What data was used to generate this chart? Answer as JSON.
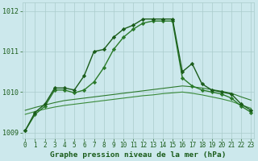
{
  "background_color": "#cce8ec",
  "grid_color": "#aacccc",
  "line1_main": {
    "x": [
      0,
      1,
      2,
      3,
      4,
      5,
      6,
      7,
      8,
      9,
      10,
      11,
      12,
      13,
      14,
      15,
      16,
      17,
      18,
      19,
      20,
      21,
      22,
      23
    ],
    "y": [
      1009.05,
      1009.5,
      1009.7,
      1010.1,
      1010.1,
      1010.05,
      1010.4,
      1011.0,
      1011.05,
      1011.35,
      1011.55,
      1011.65,
      1011.8,
      1011.8,
      1011.8,
      1011.8,
      1010.5,
      1010.7,
      1010.2,
      1010.05,
      1010.0,
      1009.95,
      1009.7,
      1009.55
    ],
    "color": "#1a5c1a",
    "linewidth": 1.0,
    "marker": "D",
    "markersize": 2.2,
    "linestyle": "-"
  },
  "line2_second": {
    "x": [
      0,
      1,
      2,
      3,
      4,
      5,
      6,
      7,
      8,
      9,
      10,
      11,
      12,
      13,
      14,
      15,
      16,
      17,
      18,
      19,
      20,
      21,
      22,
      23
    ],
    "y": [
      1009.05,
      1009.45,
      1009.65,
      1010.05,
      1010.05,
      1009.98,
      1010.05,
      1010.25,
      1010.6,
      1011.05,
      1011.35,
      1011.55,
      1011.7,
      1011.75,
      1011.75,
      1011.75,
      1010.35,
      1010.15,
      1010.05,
      1010.0,
      1009.95,
      1009.85,
      1009.65,
      1009.5
    ],
    "color": "#2a7a2a",
    "linewidth": 1.0,
    "marker": "D",
    "markersize": 2.2,
    "linestyle": "-"
  },
  "line3_upper_flat": {
    "x": [
      0,
      1,
      2,
      3,
      4,
      5,
      6,
      7,
      8,
      9,
      10,
      11,
      12,
      13,
      14,
      15,
      16,
      17,
      18,
      19,
      20,
      21,
      22,
      23
    ],
    "y": [
      1009.55,
      1009.62,
      1009.68,
      1009.74,
      1009.79,
      1009.82,
      1009.85,
      1009.88,
      1009.91,
      1009.94,
      1009.97,
      1010.0,
      1010.03,
      1010.06,
      1010.09,
      1010.12,
      1010.15,
      1010.13,
      1010.1,
      1010.06,
      1010.02,
      1009.97,
      1009.88,
      1009.8
    ],
    "color": "#2d7a2d",
    "linewidth": 0.8,
    "marker": null,
    "linestyle": "-"
  },
  "line4_lower_flat": {
    "x": [
      0,
      1,
      2,
      3,
      4,
      5,
      6,
      7,
      8,
      9,
      10,
      11,
      12,
      13,
      14,
      15,
      16,
      17,
      18,
      19,
      20,
      21,
      22,
      23
    ],
    "y": [
      1009.45,
      1009.52,
      1009.58,
      1009.63,
      1009.67,
      1009.7,
      1009.73,
      1009.76,
      1009.79,
      1009.82,
      1009.85,
      1009.88,
      1009.91,
      1009.93,
      1009.96,
      1009.98,
      1010.0,
      1009.97,
      1009.93,
      1009.88,
      1009.83,
      1009.77,
      1009.68,
      1009.6
    ],
    "color": "#3a8a3a",
    "linewidth": 0.8,
    "marker": null,
    "linestyle": "-"
  },
  "ylim": [
    1008.85,
    1012.2
  ],
  "xlim": [
    -0.3,
    23.3
  ],
  "yticks": [
    1009,
    1010,
    1011,
    1012
  ],
  "xticks": [
    0,
    1,
    2,
    3,
    4,
    5,
    6,
    7,
    8,
    9,
    10,
    11,
    12,
    13,
    14,
    15,
    16,
    17,
    18,
    19,
    20,
    21,
    22,
    23
  ],
  "xlabel": "Graphe pression niveau de la mer (hPa)",
  "xlabel_color": "#1a5c1a",
  "xlabel_fontsize": 6.8,
  "tick_fontsize": 5.5,
  "tick_color": "#1a5c1a",
  "ytick_fontsize": 6.0
}
